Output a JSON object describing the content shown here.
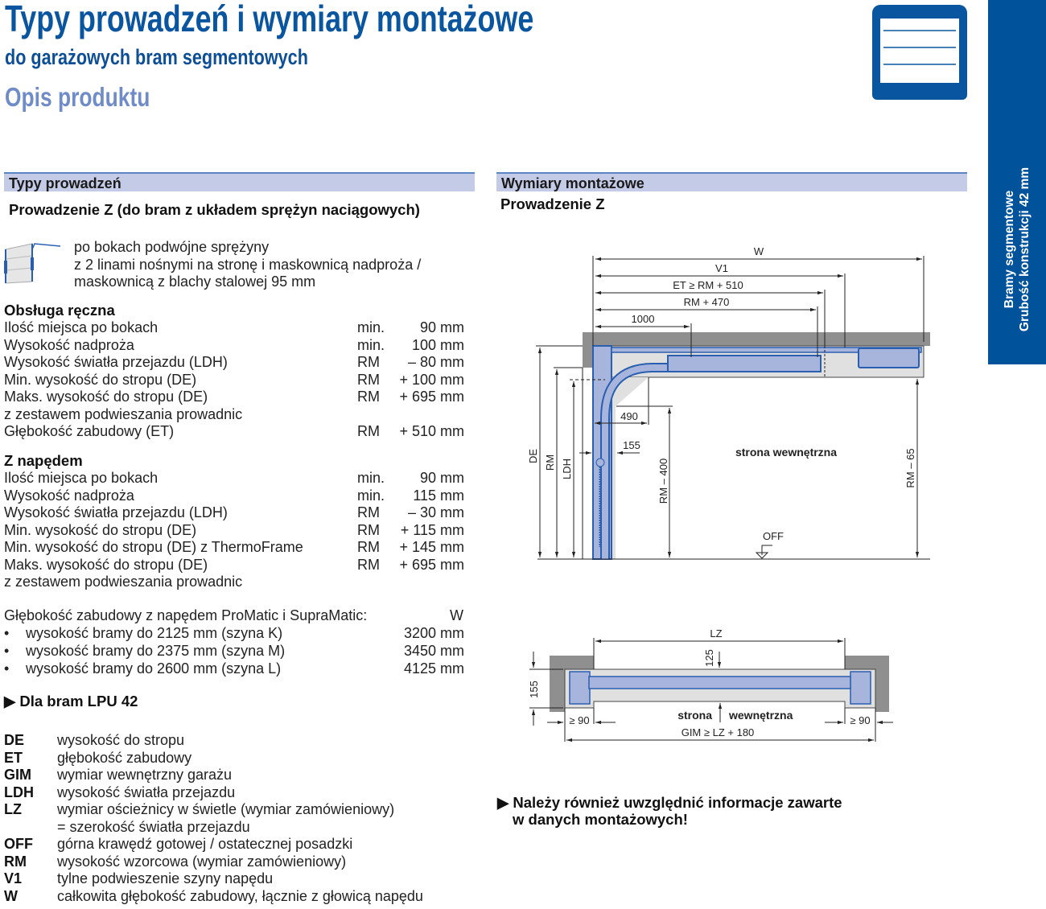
{
  "header": {
    "title": "Typy prowadzeń i wymiary montażowe",
    "subtitle": "do garażowych bram segmentowych",
    "section": "Opis produktu"
  },
  "side_tab": {
    "line1": "Bramy segmentowe",
    "line2": "Grubość konstrukcji 42 mm",
    "color": "#00529b"
  },
  "left": {
    "bar": "Typy prowadzeń",
    "heading": "Prowadzenie Z (do bram z układem sprężyn naciągowych)",
    "desc": [
      "po bokach podwójne sprężyny",
      "z 2 linami nośnymi na stronę i maskownicą nadproża /",
      "maskownicą z blachy stalowej 95 mm"
    ],
    "manual": {
      "title": "Obsługa ręczna",
      "rows": [
        {
          "label": "Ilość miejsca po bokach",
          "unit": "min.",
          "value": "90 mm"
        },
        {
          "label": "Wysokość nadproża",
          "unit": "min.",
          "value": "100 mm"
        },
        {
          "label": "Wysokość światła przejazdu  (LDH)",
          "unit": "RM",
          "value": "– 80 mm"
        },
        {
          "label": "Min. wysokość do stropu (DE)",
          "unit": "RM",
          "value": "+ 100 mm"
        },
        {
          "label": "Maks. wysokość do stropu (DE)",
          "unit": "RM",
          "value": "+ 695 mm"
        },
        {
          "label": "z zestawem podwieszania prowadnic",
          "unit": "",
          "value": ""
        },
        {
          "label": "Głębokość zabudowy (ET)",
          "unit": "RM",
          "value": "+ 510 mm"
        }
      ]
    },
    "drive": {
      "title": "Z napędem",
      "rows": [
        {
          "label": "Ilość miejsca po bokach",
          "unit": "min.",
          "value": "90 mm"
        },
        {
          "label": "Wysokość nadproża",
          "unit": "min.",
          "value": "115 mm"
        },
        {
          "label": "Wysokość światła przejazdu  (LDH)",
          "unit": "RM",
          "value": "– 30 mm"
        },
        {
          "label": "Min. wysokość do stropu (DE)",
          "unit": "RM",
          "value": "+ 115 mm"
        },
        {
          "label": "Min. wysokość do stropu (DE) z ThermoFrame",
          "unit": "RM",
          "value": "+ 145 mm"
        },
        {
          "label": "Maks. wysokość do stropu (DE)",
          "unit": "RM",
          "value": "+ 695 mm"
        },
        {
          "label": "z zestawem podwieszania prowadnic",
          "unit": "",
          "value": ""
        }
      ]
    },
    "depth": {
      "title": "Głębokość zabudowy z napędem ProMatic i SupraMatic:",
      "col": "W",
      "items": [
        {
          "label": "wysokość bramy do 2125 mm (szyna K)",
          "value": "3200 mm"
        },
        {
          "label": "wysokość bramy do 2375 mm (szyna M)",
          "value": "3450 mm"
        },
        {
          "label": "wysokość bramy do 2600 mm (szyna L)",
          "value": "4125 mm"
        }
      ]
    },
    "lpu": "Dla bram LPU 42",
    "abbreviations": [
      {
        "k": "DE",
        "v": "wysokość do stropu"
      },
      {
        "k": "ET",
        "v": "głębokość zabudowy"
      },
      {
        "k": "GIM",
        "v": "wymiar wewnętrzny garażu"
      },
      {
        "k": "LDH",
        "v": "wysokość światła przejazdu"
      },
      {
        "k": "LZ",
        "v": "wymiar ościeżnicy w świetle (wymiar zamówieniowy)"
      },
      {
        "k": "",
        "v": "= szerokość światła przejazdu"
      },
      {
        "k": "OFF",
        "v": "górna krawędź gotowej / ostatecznej posadzki"
      },
      {
        "k": "RM",
        "v": "wysokość wzorcowa (wymiar zamówieniowy)"
      },
      {
        "k": "V1",
        "v": "tylne podwieszenie szyny napędu"
      },
      {
        "k": "W",
        "v": "całkowita głębokość zabudowy, łącznie z głowicą napędu"
      }
    ]
  },
  "right": {
    "bar": "Wymiary montażowe",
    "heading": "Prowadzenie Z",
    "side_view": {
      "W": "W",
      "V1": "V1",
      "ET": "ET ≥ RM + 510",
      "RM470": "RM + 470",
      "d1000": "1000",
      "d490": "490",
      "d155": "155",
      "DE": "DE",
      "RM": "RM",
      "LDH": "LDH",
      "RM400": "RM – 400",
      "RM65": "RM – 65",
      "inside": "strona wewnętrzna",
      "OFF": "OFF"
    },
    "top_view": {
      "LZ": "LZ",
      "d125": "125",
      "d155": "155",
      "inside1": "strona",
      "inside2": "wewnętrzna",
      "g90l": "≥ 90",
      "g90r": "≥ 90",
      "GIM": "GIM ≥ LZ + 180"
    },
    "note1": "Należy również uwzględnić informacje zawarte",
    "note2": "w danych montażowych!"
  },
  "colors": {
    "brand": "#0a55a0",
    "bar": "#c4cbe7",
    "track": "#a7b5dc",
    "wall": "#8f8f8f"
  }
}
